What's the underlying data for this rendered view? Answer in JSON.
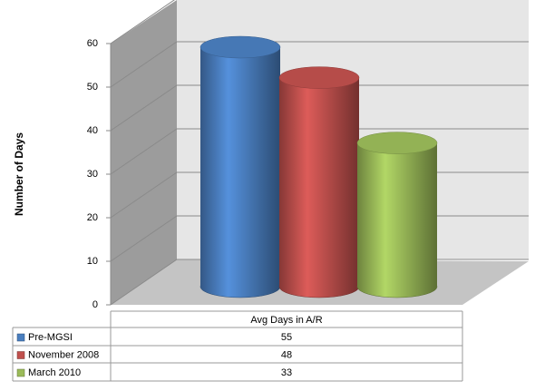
{
  "chart_data": {
    "type": "bar3d-cylinder",
    "y_label": "Number of Days",
    "categories": [
      "Avg Days in A/R"
    ],
    "series": [
      {
        "name": "Pre-MGSI",
        "color": "#4a7ebf",
        "values": [
          55
        ]
      },
      {
        "name": "November 2008",
        "color": "#c0504d",
        "values": [
          48
        ]
      },
      {
        "name": "March 2010",
        "color": "#9bbb59",
        "values": [
          33
        ]
      }
    ],
    "ylim": [
      0,
      60
    ],
    "yticks": [
      0,
      10,
      20,
      30,
      40,
      50,
      60
    ],
    "grid": true
  }
}
